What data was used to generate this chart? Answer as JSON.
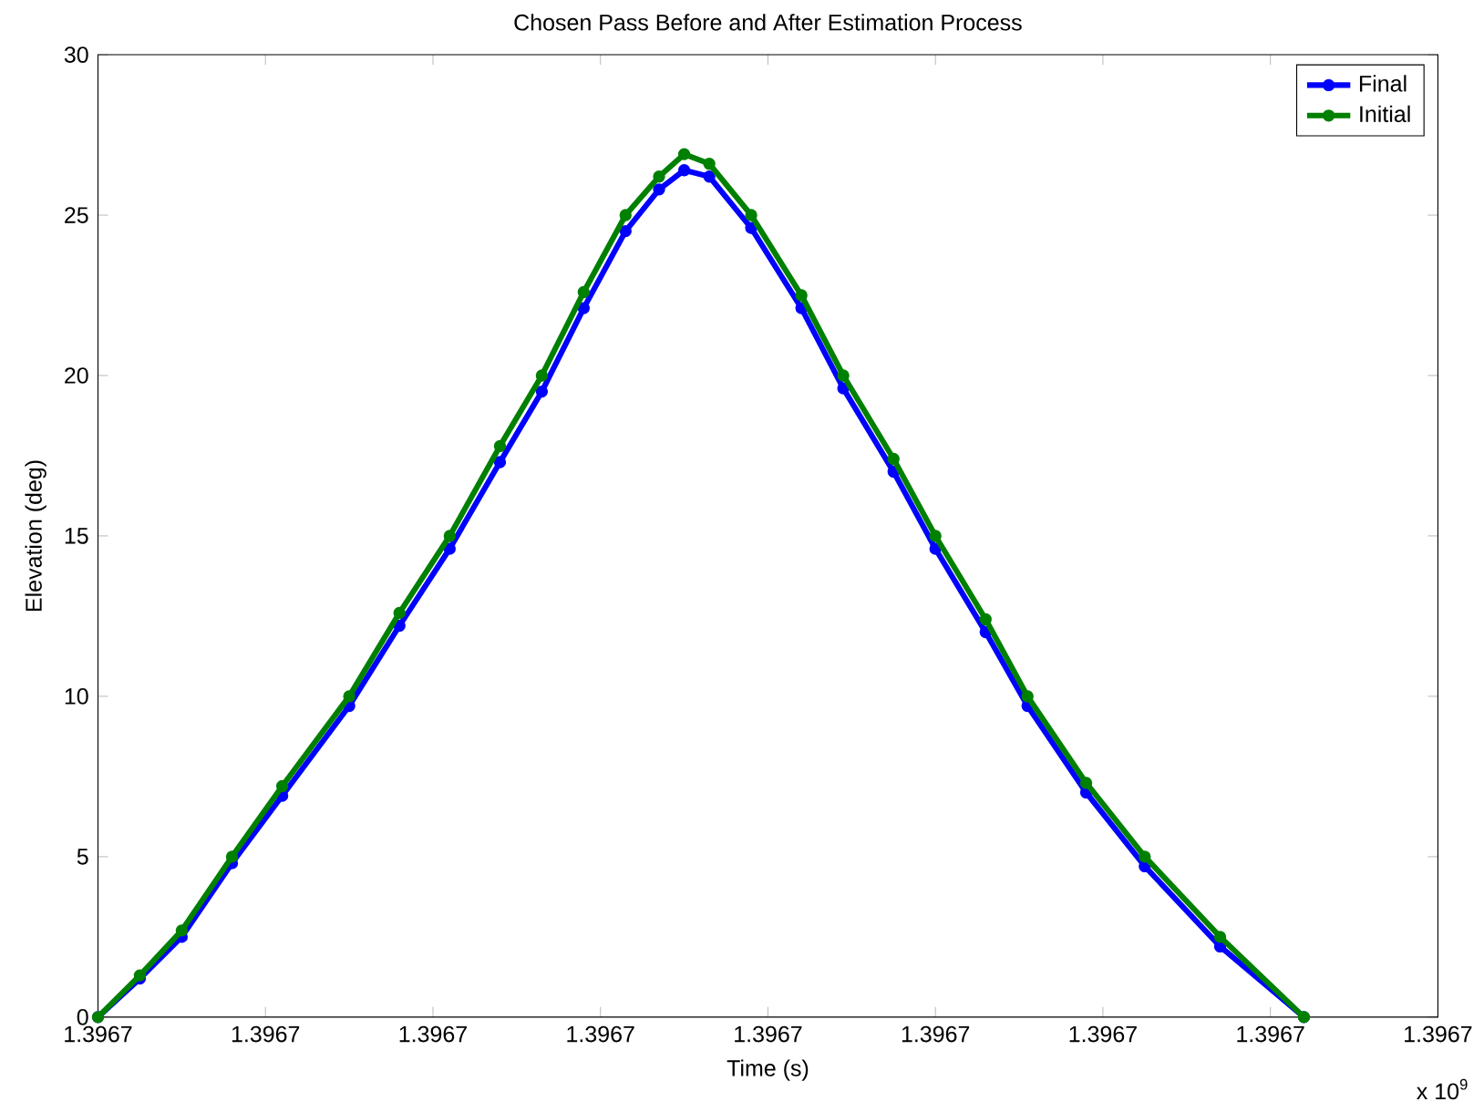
{
  "chart_data": {
    "type": "line",
    "title": "Chosen Pass Before and After Estimation Process",
    "xlabel": "Time (s)",
    "ylabel": "Elevation (deg)",
    "annotations": [
      "x 10$^{9}$"
    ],
    "xlim": [
      1.3967,
      1.3967016
    ],
    "ylim": [
      0,
      30
    ],
    "xticks": [
      {
        "value": 1.3967,
        "label": "1.3967"
      },
      {
        "value": 1.3967002,
        "label": "1.3967"
      },
      {
        "value": 1.3967004,
        "label": "1.3967"
      },
      {
        "value": 1.3967006,
        "label": "1.3967"
      },
      {
        "value": 1.3967008,
        "label": "1.3967"
      },
      {
        "value": 1.396701,
        "label": "1.3967"
      },
      {
        "value": 1.3967012,
        "label": "1.3967"
      },
      {
        "value": 1.3967014,
        "label": "1.3967"
      },
      {
        "value": 1.3967016,
        "label": "1.3967"
      }
    ],
    "yticks": [
      0,
      5,
      10,
      15,
      20,
      25,
      30
    ],
    "x": [
      1.3967,
      1.39670005,
      1.3967001,
      1.39670016,
      1.39670022,
      1.3967003,
      1.39670036,
      1.39670042,
      1.39670048,
      1.39670053,
      1.39670058,
      1.39670063,
      1.39670067,
      1.3967007,
      1.39670073,
      1.39670078,
      1.39670084,
      1.39670089,
      1.39670095,
      1.396701,
      1.39670106,
      1.39670111,
      1.39670118,
      1.39670125,
      1.39670134,
      1.39670144
    ],
    "series": [
      {
        "name": "Final",
        "color": "#0000ff",
        "values": [
          0,
          1.2,
          2.5,
          4.8,
          6.9,
          9.7,
          12.2,
          14.6,
          17.3,
          19.5,
          22.1,
          24.5,
          25.8,
          26.4,
          26.2,
          24.6,
          22.1,
          19.6,
          17.0,
          14.6,
          12.0,
          9.7,
          7.0,
          4.7,
          2.2,
          0
        ]
      },
      {
        "name": "Initial",
        "color": "#008000",
        "values": [
          0,
          1.3,
          2.7,
          5,
          7.2,
          10,
          12.6,
          15,
          17.8,
          20,
          22.6,
          25,
          26.2,
          26.9,
          26.6,
          25,
          22.5,
          20,
          17.4,
          15,
          12.4,
          10,
          7.3,
          5,
          2.5,
          0
        ]
      }
    ],
    "legend": "top right",
    "marker": "circle",
    "grid": false
  }
}
